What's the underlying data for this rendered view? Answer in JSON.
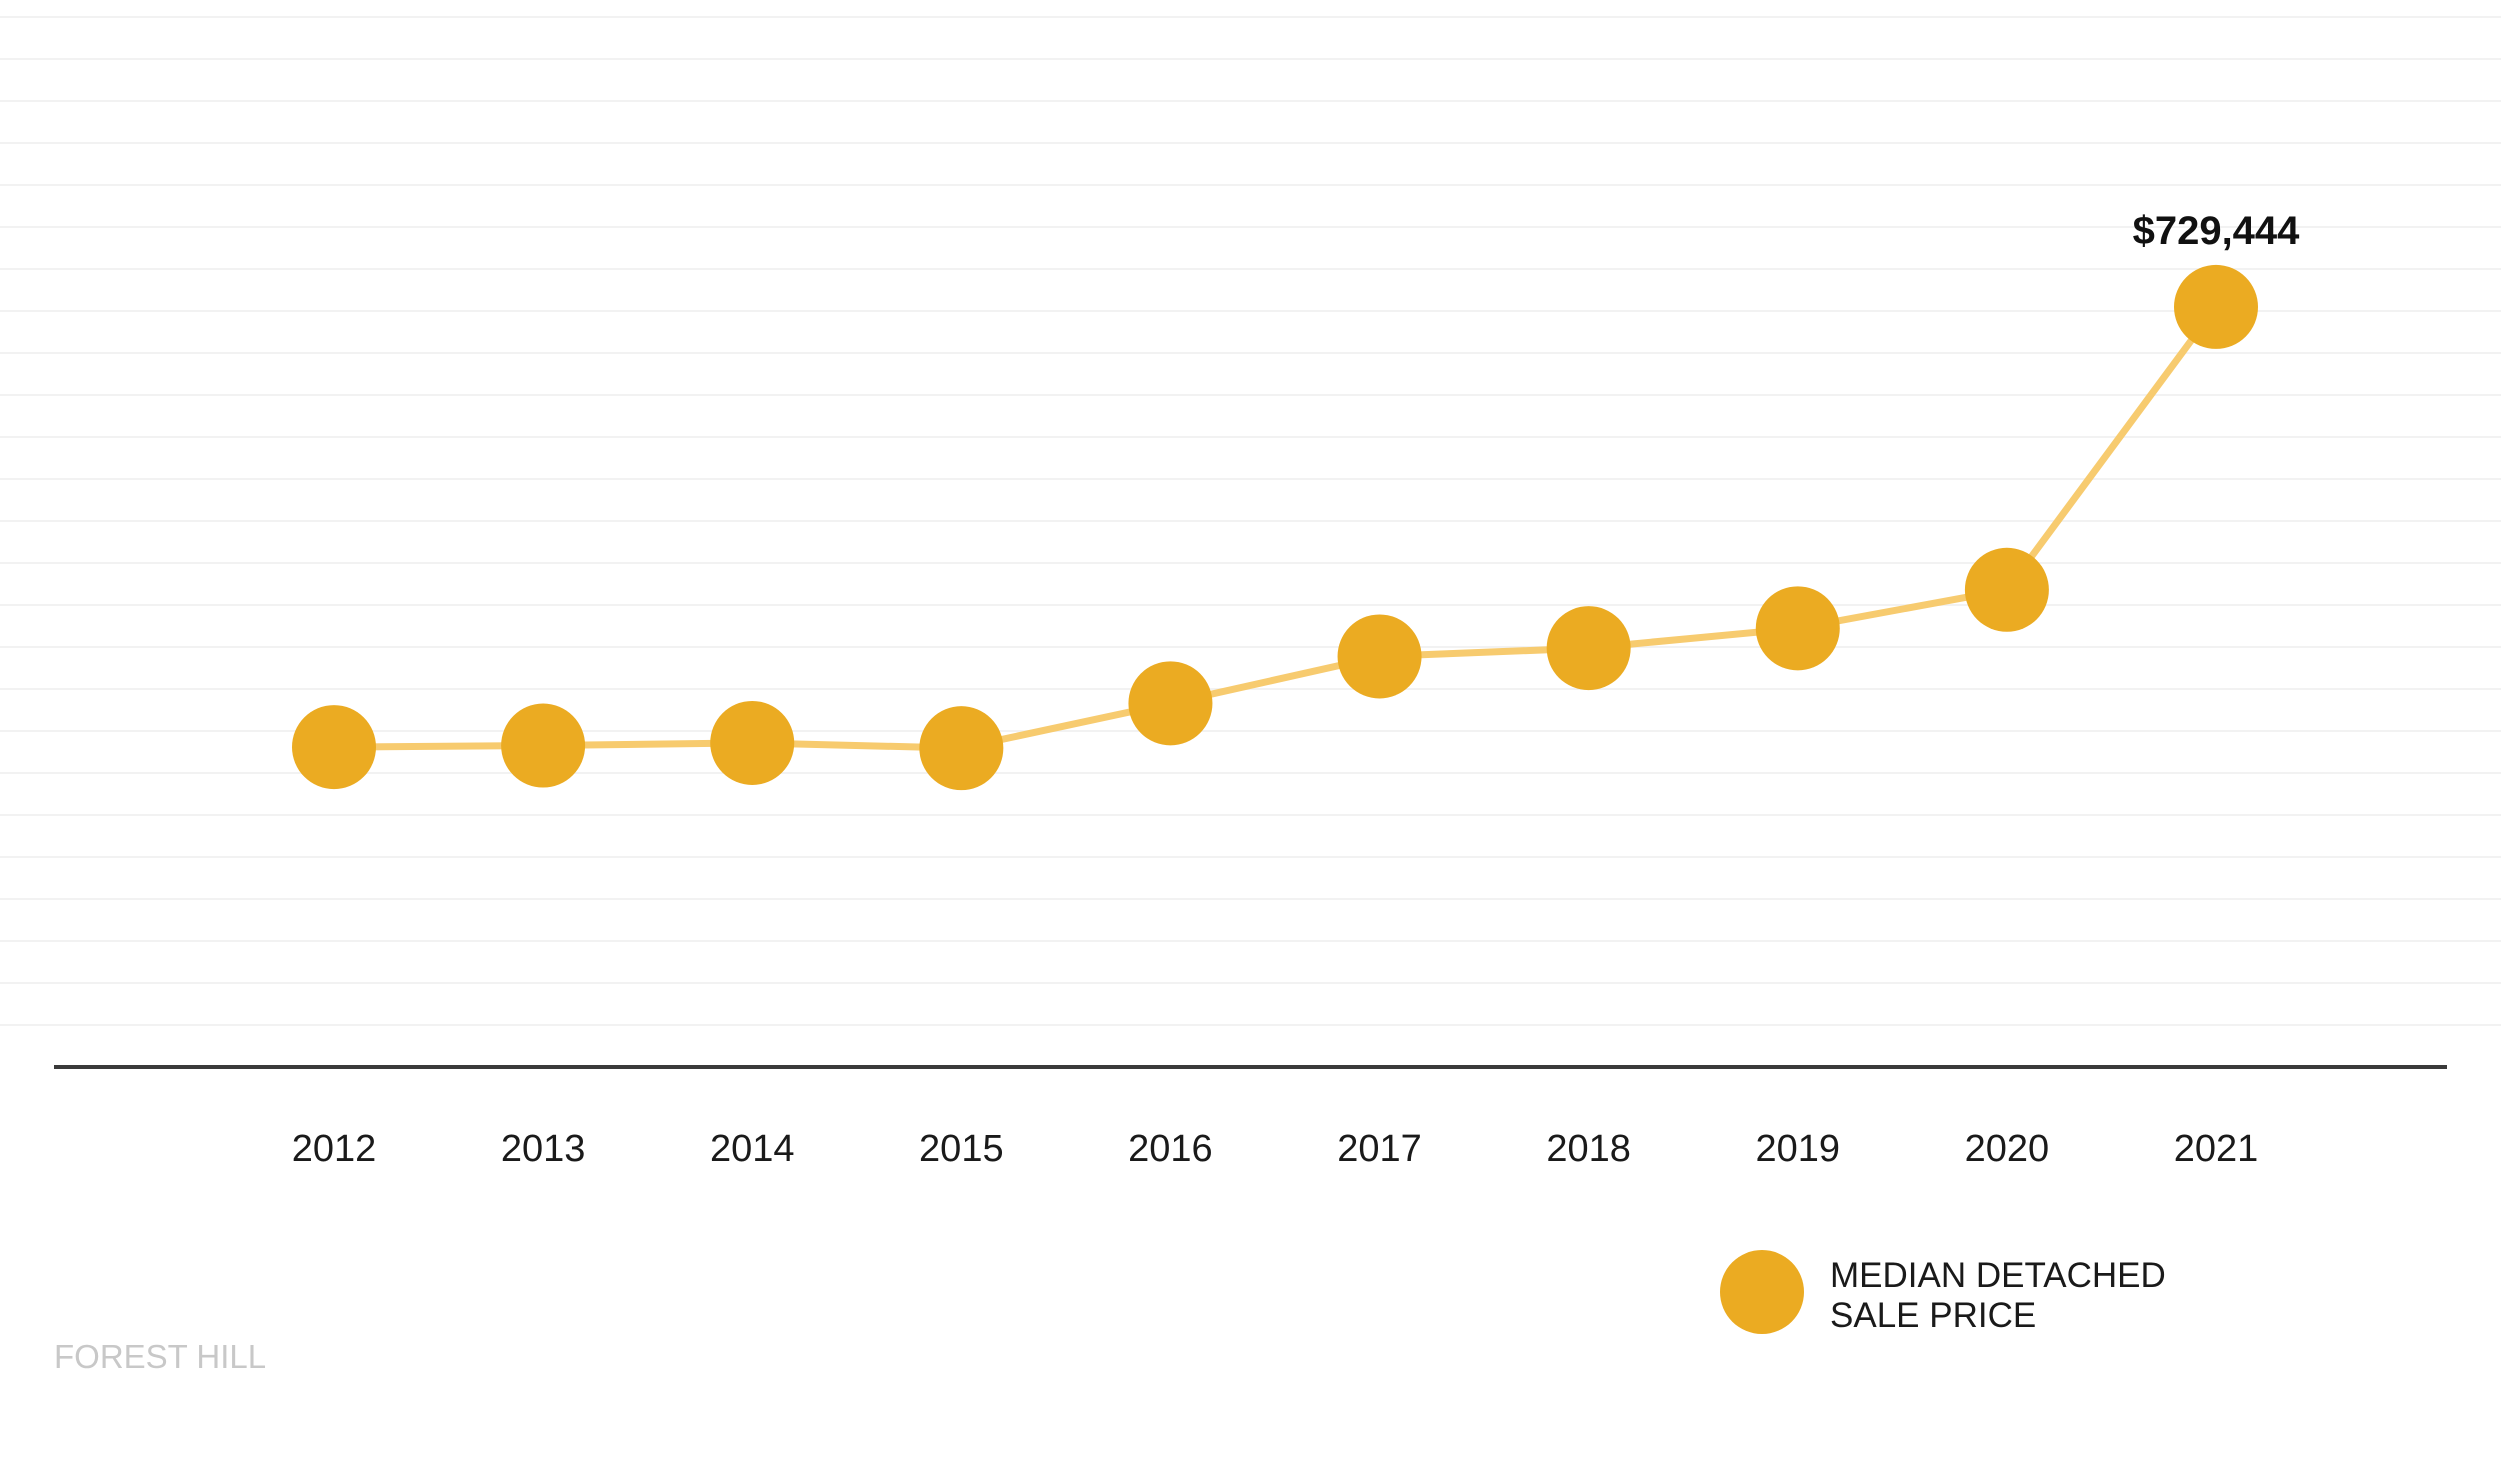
{
  "chart_data": {
    "type": "line",
    "title": "",
    "xlabel": "",
    "ylabel": "",
    "categories": [
      "2012",
      "2013",
      "2014",
      "2015",
      "2016",
      "2017",
      "2018",
      "2019",
      "2020",
      "2021"
    ],
    "series": [
      {
        "name": "MEDIAN DETACHED SALE PRICE",
        "legend_lines": [
          "MEDIAN DETACHED",
          "SALE PRICE"
        ],
        "values": [
          307000,
          308500,
          311000,
          306000,
          349000,
          394000,
          402000,
          421000,
          458000,
          729444
        ]
      }
    ],
    "ylim": [
      0,
      1000000
    ],
    "annotation": {
      "category": "2021",
      "text": "$729,444"
    },
    "grid": true,
    "legend_position": "bottom-right",
    "colors": {
      "marker": "#EBAB22",
      "line": "#F7CB6F",
      "axis": "#3a3a3a",
      "grid": "#f2f2f2"
    }
  },
  "footer": {
    "neighbourhood": "FOREST HILL"
  }
}
